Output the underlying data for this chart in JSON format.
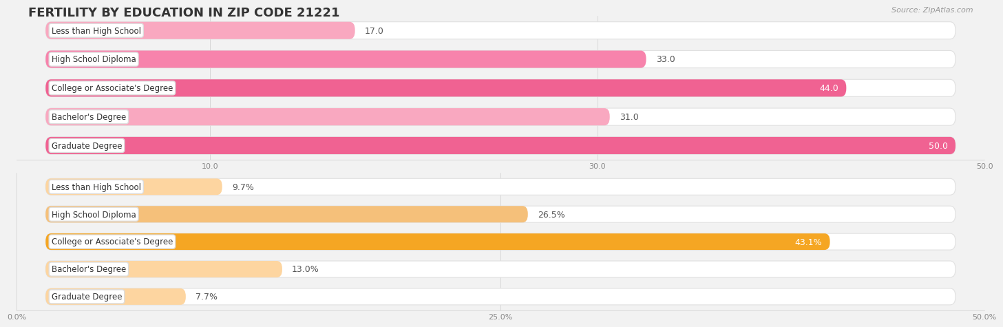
{
  "title": "FERTILITY BY EDUCATION IN ZIP CODE 21221",
  "source": "Source: ZipAtlas.com",
  "top_section": {
    "categories": [
      "Less than High School",
      "High School Diploma",
      "College or Associate's Degree",
      "Bachelor's Degree",
      "Graduate Degree"
    ],
    "values": [
      17.0,
      33.0,
      44.0,
      31.0,
      50.0
    ],
    "labels": [
      "17.0",
      "33.0",
      "44.0",
      "31.0",
      "50.0"
    ],
    "label_inside": [
      false,
      false,
      true,
      false,
      true
    ],
    "bar_colors": [
      "#f9a8c0",
      "#f783ac",
      "#f06292",
      "#f9a8c0",
      "#f06292"
    ],
    "bg_bar_color": "#f0f0f0",
    "xlim": [
      0,
      50
    ],
    "xticks": [
      10.0,
      30.0,
      50.0
    ],
    "xticklabels": [
      "10.0",
      "30.0",
      "50.0"
    ]
  },
  "bottom_section": {
    "categories": [
      "Less than High School",
      "High School Diploma",
      "College or Associate's Degree",
      "Bachelor's Degree",
      "Graduate Degree"
    ],
    "values": [
      9.7,
      26.5,
      43.1,
      13.0,
      7.7
    ],
    "labels": [
      "9.7%",
      "26.5%",
      "43.1%",
      "13.0%",
      "7.7%"
    ],
    "label_inside": [
      false,
      false,
      true,
      false,
      false
    ],
    "bar_colors": [
      "#fdd5a0",
      "#f5c07a",
      "#f5a623",
      "#fdd5a0",
      "#fdd5a0"
    ],
    "bg_bar_color": "#f0f0f0",
    "xlim": [
      0,
      50
    ],
    "xticks": [
      0.0,
      25.0,
      50.0
    ],
    "xticklabels": [
      "0.0%",
      "25.0%",
      "50.0%"
    ]
  },
  "fig_bg_color": "#f2f2f2",
  "bar_bg_color": "#ffffff",
  "label_fontsize": 9,
  "category_fontsize": 8.5,
  "title_fontsize": 13,
  "source_fontsize": 8,
  "bar_height": 0.6,
  "bar_label_color_inside": "#ffffff",
  "bar_label_color_outside": "#555555"
}
